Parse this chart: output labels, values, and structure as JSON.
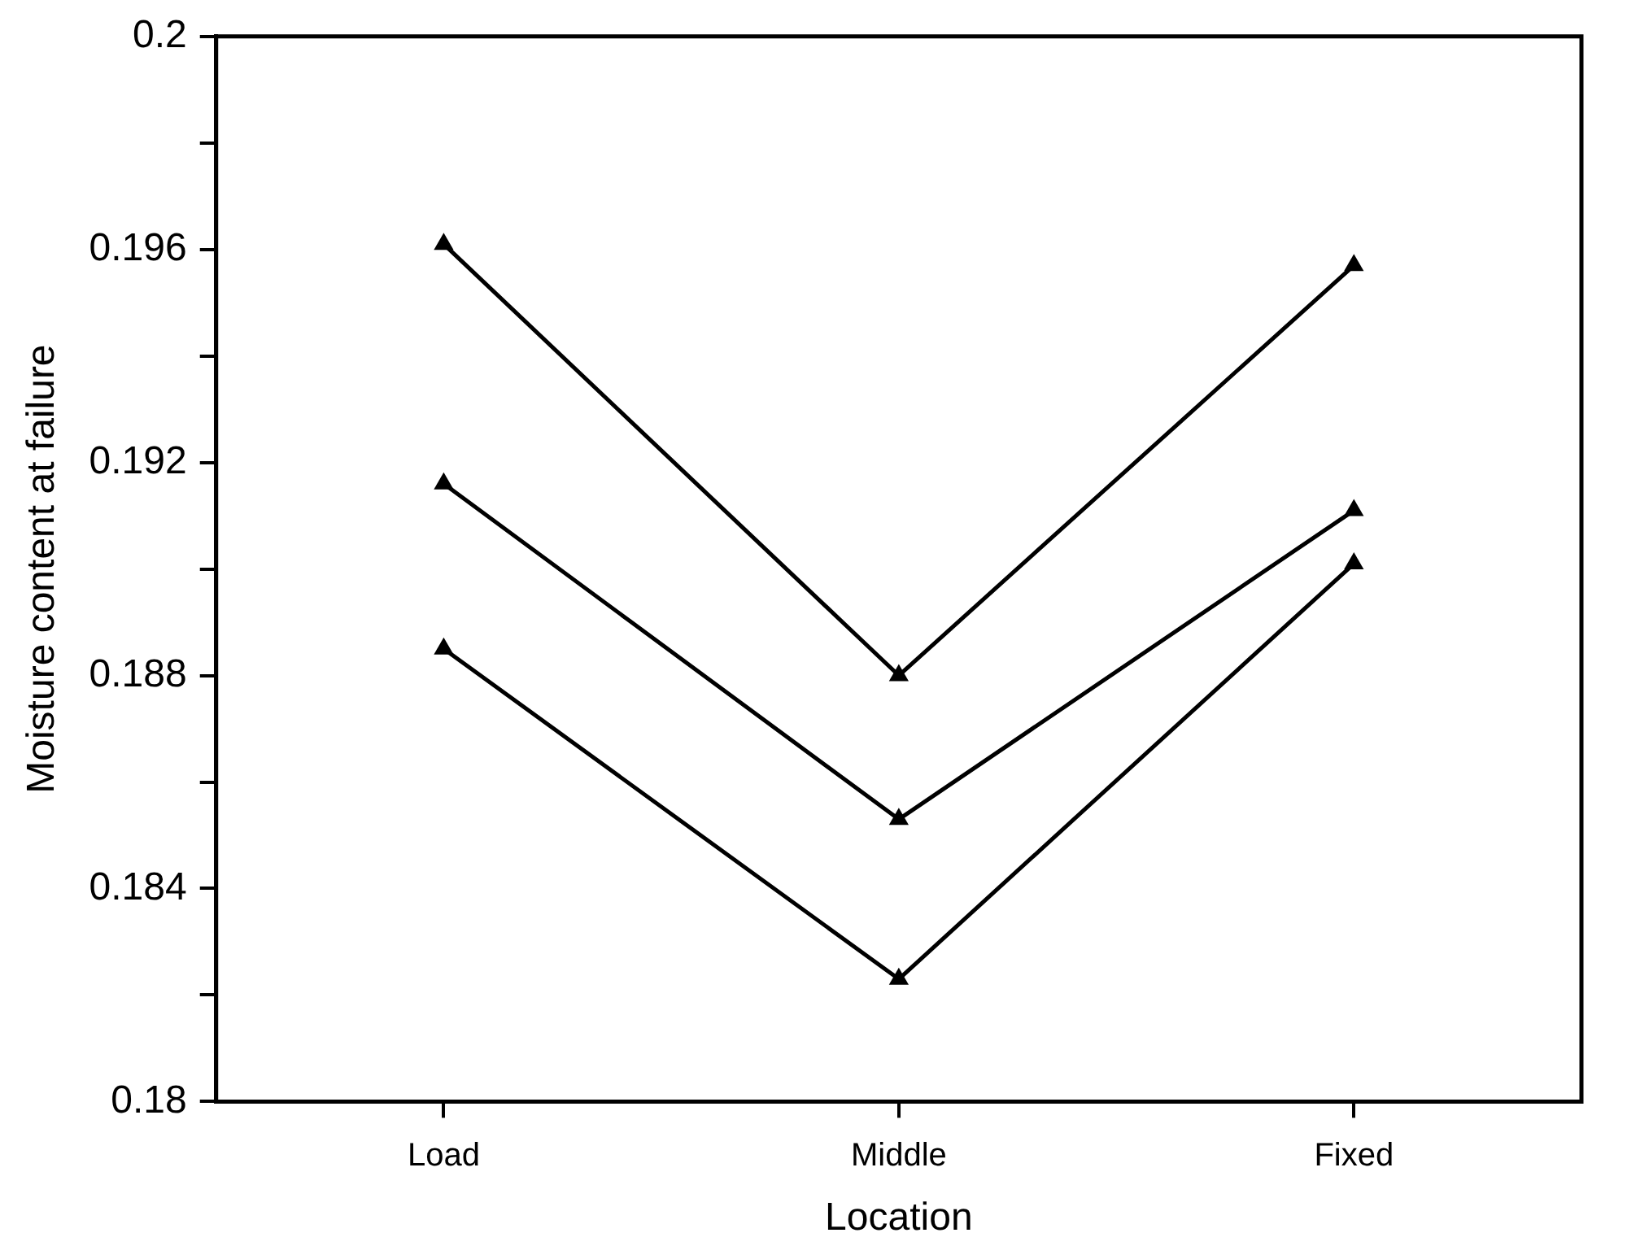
{
  "chart_data": {
    "type": "line",
    "xlabel": "Location",
    "ylabel": "Moisture content at failure",
    "categories": [
      "Load",
      "Middle",
      "Fixed"
    ],
    "series": [
      {
        "color": "#000000",
        "values": [
          0.1961,
          0.188,
          0.1957
        ]
      },
      {
        "color": "#000000",
        "values": [
          0.1916,
          0.1853,
          0.1911
        ]
      },
      {
        "color": "#000000",
        "values": [
          0.1885,
          0.1823,
          0.1901
        ]
      }
    ],
    "ylim": [
      0.18,
      0.2
    ],
    "yticks": [
      0.18,
      {
        "value": 0.182,
        "label": null
      },
      0.184,
      {
        "value": 0.186,
        "label": null
      },
      0.188,
      {
        "value": 0.19,
        "label": null
      },
      0.192,
      {
        "value": 0.194,
        "label": null
      },
      0.196,
      {
        "value": 0.198,
        "label": null
      },
      0.2
    ],
    "grid": false,
    "legend": false,
    "marker": "triangle",
    "line_style": "solid"
  }
}
